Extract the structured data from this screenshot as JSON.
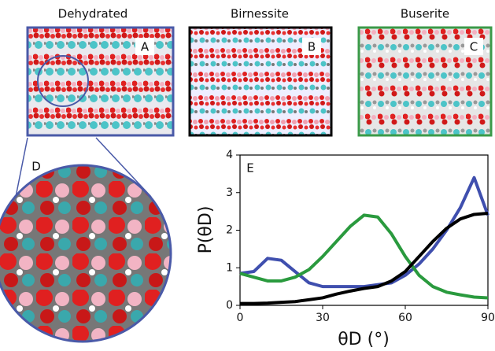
{
  "panels": [
    {
      "title": "Dehydrated",
      "label": "A"
    },
    {
      "title": "Birnessite",
      "label": "B"
    },
    {
      "title": "Buserite",
      "label": "C"
    }
  ],
  "inset_label": "D",
  "chart_data": {
    "type": "line",
    "panel_label": "E",
    "x_label": "θD (°)",
    "y_label": "P(θD)",
    "x": [
      0,
      5,
      10,
      15,
      20,
      25,
      30,
      35,
      40,
      45,
      50,
      55,
      60,
      65,
      70,
      75,
      80,
      85,
      90
    ],
    "series": [
      {
        "color": "#3f4fae",
        "values": [
          0.85,
          0.9,
          1.25,
          1.2,
          0.9,
          0.6,
          0.5,
          0.5,
          0.5,
          0.5,
          0.55,
          0.6,
          0.8,
          1.1,
          1.5,
          2.0,
          2.6,
          3.4,
          2.4
        ]
      },
      {
        "color": "#2a9a3e",
        "values": [
          0.85,
          0.75,
          0.65,
          0.65,
          0.75,
          0.95,
          1.3,
          1.7,
          2.1,
          2.4,
          2.35,
          1.9,
          1.3,
          0.8,
          0.5,
          0.35,
          0.28,
          0.22,
          0.2
        ]
      },
      {
        "color": "#000000",
        "values": [
          0.05,
          0.05,
          0.06,
          0.08,
          0.1,
          0.15,
          0.2,
          0.3,
          0.38,
          0.45,
          0.5,
          0.65,
          0.9,
          1.3,
          1.7,
          2.05,
          2.3,
          2.42,
          2.45
        ]
      }
    ],
    "xlim": [
      0,
      90
    ],
    "xticks": [
      0,
      30,
      60,
      90
    ],
    "ylim": [
      0,
      4
    ],
    "yticks": [
      0,
      1,
      2,
      3,
      4
    ]
  }
}
